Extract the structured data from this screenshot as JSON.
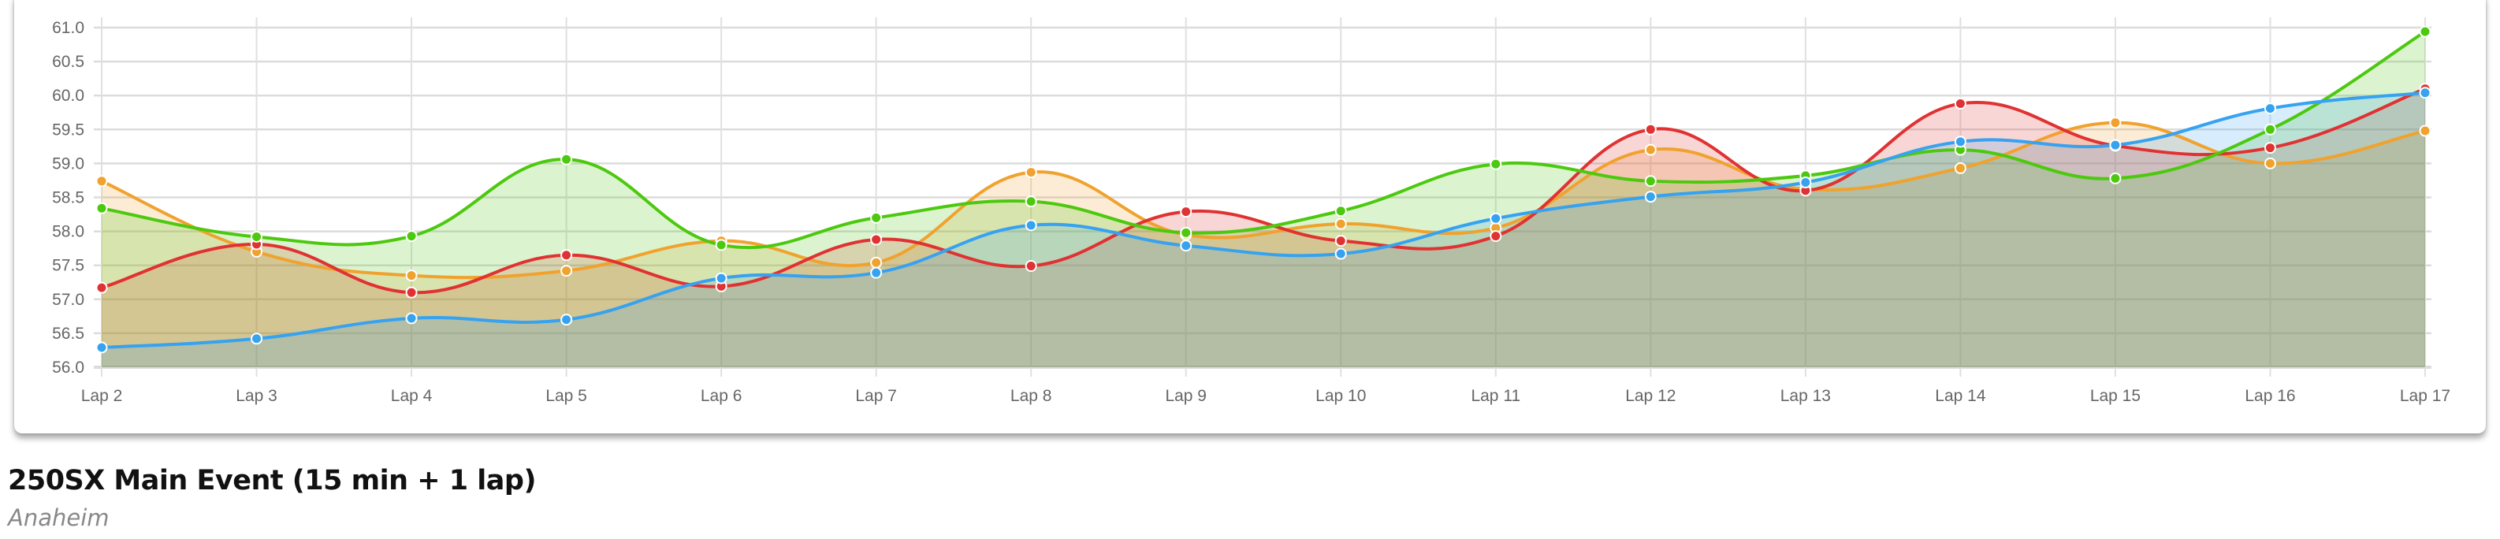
{
  "title": "250SX Main Event (15 min + 1 lap)",
  "subtitle": "Anaheim",
  "chart_data": {
    "type": "area",
    "categories": [
      "Lap 2",
      "Lap 3",
      "Lap 4",
      "Lap 5",
      "Lap 6",
      "Lap 7",
      "Lap 8",
      "Lap 9",
      "Lap 10",
      "Lap 11",
      "Lap 12",
      "Lap 13",
      "Lap 14",
      "Lap 15",
      "Lap 16",
      "Lap 17"
    ],
    "ylim": [
      56.0,
      61.0
    ],
    "yticks": [
      "56.0",
      "56.5",
      "57.0",
      "57.5",
      "58.0",
      "58.5",
      "59.0",
      "59.5",
      "60.0",
      "60.5",
      "61.0"
    ],
    "grid": true,
    "legend": "none",
    "smooth": true,
    "series": [
      {
        "color": "#f0a22e",
        "values": [
          58.74,
          57.7,
          57.35,
          57.42,
          57.86,
          57.54,
          58.87,
          57.95,
          58.11,
          58.05,
          59.2,
          58.62,
          58.93,
          59.6,
          59.0,
          59.48
        ]
      },
      {
        "color": "#e03232",
        "values": [
          57.17,
          57.81,
          57.1,
          57.65,
          57.19,
          57.88,
          57.49,
          58.29,
          57.86,
          57.93,
          59.5,
          58.6,
          59.88,
          59.26,
          59.23,
          60.1
        ]
      },
      {
        "color": "#4cc90f",
        "values": [
          58.34,
          57.92,
          57.93,
          59.06,
          57.8,
          58.2,
          58.44,
          57.98,
          58.3,
          58.99,
          58.74,
          58.82,
          59.2,
          58.78,
          59.5,
          60.94
        ]
      },
      {
        "color": "#36a2f0",
        "values": [
          56.29,
          56.42,
          56.72,
          56.7,
          57.31,
          57.39,
          58.09,
          57.79,
          57.67,
          58.19,
          58.51,
          58.72,
          59.32,
          59.27,
          59.81,
          60.04
        ]
      }
    ]
  }
}
